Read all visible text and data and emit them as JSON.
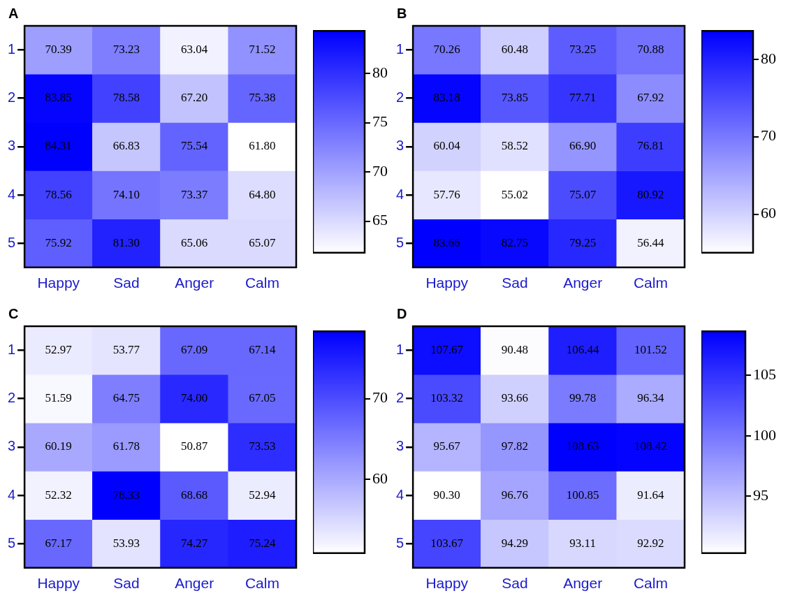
{
  "chart_data": [
    {
      "type": "heatmap",
      "title": "A",
      "categories": [
        "Happy",
        "Sad",
        "Anger",
        "Calm"
      ],
      "y_categories": [
        "1",
        "2",
        "3",
        "4",
        "5"
      ],
      "cells": [
        [
          70.39,
          73.23,
          63.04,
          71.52
        ],
        [
          83.85,
          78.58,
          67.2,
          75.38
        ],
        [
          84.31,
          66.83,
          75.54,
          61.8
        ],
        [
          78.56,
          74.1,
          73.37,
          64.8
        ],
        [
          75.92,
          81.3,
          65.06,
          65.07
        ]
      ],
      "cell_labels": [
        [
          "70.39",
          "73.23",
          "63.04",
          "71.52"
        ],
        [
          "83.85",
          "78.58",
          "67.20",
          "75.38"
        ],
        [
          "84.31",
          "66.83",
          "75.54",
          "61.80"
        ],
        [
          "78.56",
          "74.10",
          "73.37",
          "64.80"
        ],
        [
          "75.92",
          "81.30",
          "65.06",
          "65.07"
        ]
      ],
      "clim": [
        61.8,
        84.31
      ],
      "cticks": [
        65,
        70,
        75,
        80
      ],
      "data_labels": true
    },
    {
      "type": "heatmap",
      "title": "B",
      "categories": [
        "Happy",
        "Sad",
        "Anger",
        "Calm"
      ],
      "y_categories": [
        "1",
        "2",
        "3",
        "4",
        "5"
      ],
      "cells": [
        [
          70.26,
          60.48,
          73.25,
          70.88
        ],
        [
          83.18,
          73.85,
          77.71,
          67.92
        ],
        [
          60.04,
          58.52,
          66.9,
          76.81
        ],
        [
          57.76,
          55.02,
          75.07,
          80.92
        ],
        [
          83.66,
          82.75,
          79.25,
          56.44
        ]
      ],
      "cell_labels": [
        [
          "70.26",
          "60.48",
          "73.25",
          "70.88"
        ],
        [
          "83.18",
          "73.85",
          "77.71",
          "67.92"
        ],
        [
          "60.04",
          "58.52",
          "66.90",
          "76.81"
        ],
        [
          "57.76",
          "55.02",
          "75.07",
          "80.92"
        ],
        [
          "83.66",
          "82.75",
          "79.25",
          "56.44"
        ]
      ],
      "clim": [
        55.02,
        83.66
      ],
      "cticks": [
        60,
        70,
        80
      ],
      "data_labels": true
    },
    {
      "type": "heatmap",
      "title": "C",
      "categories": [
        "Happy",
        "Sad",
        "Anger",
        "Calm"
      ],
      "y_categories": [
        "1",
        "2",
        "3",
        "4",
        "5"
      ],
      "cells": [
        [
          52.97,
          53.77,
          67.09,
          67.14
        ],
        [
          51.59,
          64.75,
          74.0,
          67.05
        ],
        [
          60.19,
          61.78,
          50.87,
          73.53
        ],
        [
          52.32,
          78.33,
          68.68,
          52.94
        ],
        [
          67.17,
          53.93,
          74.27,
          75.24
        ]
      ],
      "cell_labels": [
        [
          "52.97",
          "53.77",
          "67.09",
          "67.14"
        ],
        [
          "51.59",
          "64.75",
          "74.00",
          "67.05"
        ],
        [
          "60.19",
          "61.78",
          "50.87",
          "73.53"
        ],
        [
          "52.32",
          "78.33",
          "68.68",
          "52.94"
        ],
        [
          "67.17",
          "53.93",
          "74.27",
          "75.24"
        ]
      ],
      "clim": [
        50.87,
        78.33
      ],
      "cticks": [
        60,
        70
      ],
      "data_labels": true
    },
    {
      "type": "heatmap",
      "title": "D",
      "categories": [
        "Happy",
        "Sad",
        "Anger",
        "Calm"
      ],
      "y_categories": [
        "1",
        "2",
        "3",
        "4",
        "5"
      ],
      "cells": [
        [
          107.67,
          90.48,
          106.44,
          101.52
        ],
        [
          103.32,
          93.66,
          99.78,
          96.34
        ],
        [
          95.67,
          97.82,
          108.63,
          108.42
        ],
        [
          90.3,
          96.76,
          100.85,
          91.64
        ],
        [
          103.67,
          94.29,
          93.11,
          92.92
        ]
      ],
      "cell_labels": [
        [
          "107.67",
          "90.48",
          "106.44",
          "101.52"
        ],
        [
          "103.32",
          "93.66",
          "99.78",
          "96.34"
        ],
        [
          "95.67",
          "97.82",
          "108.63",
          "108.42"
        ],
        [
          "90.30",
          "96.76",
          "100.85",
          "91.64"
        ],
        [
          "103.67",
          "94.29",
          "93.11",
          "92.92"
        ]
      ],
      "clim": [
        90.3,
        108.63
      ],
      "cticks": [
        95,
        100,
        105
      ],
      "data_labels": true
    }
  ]
}
